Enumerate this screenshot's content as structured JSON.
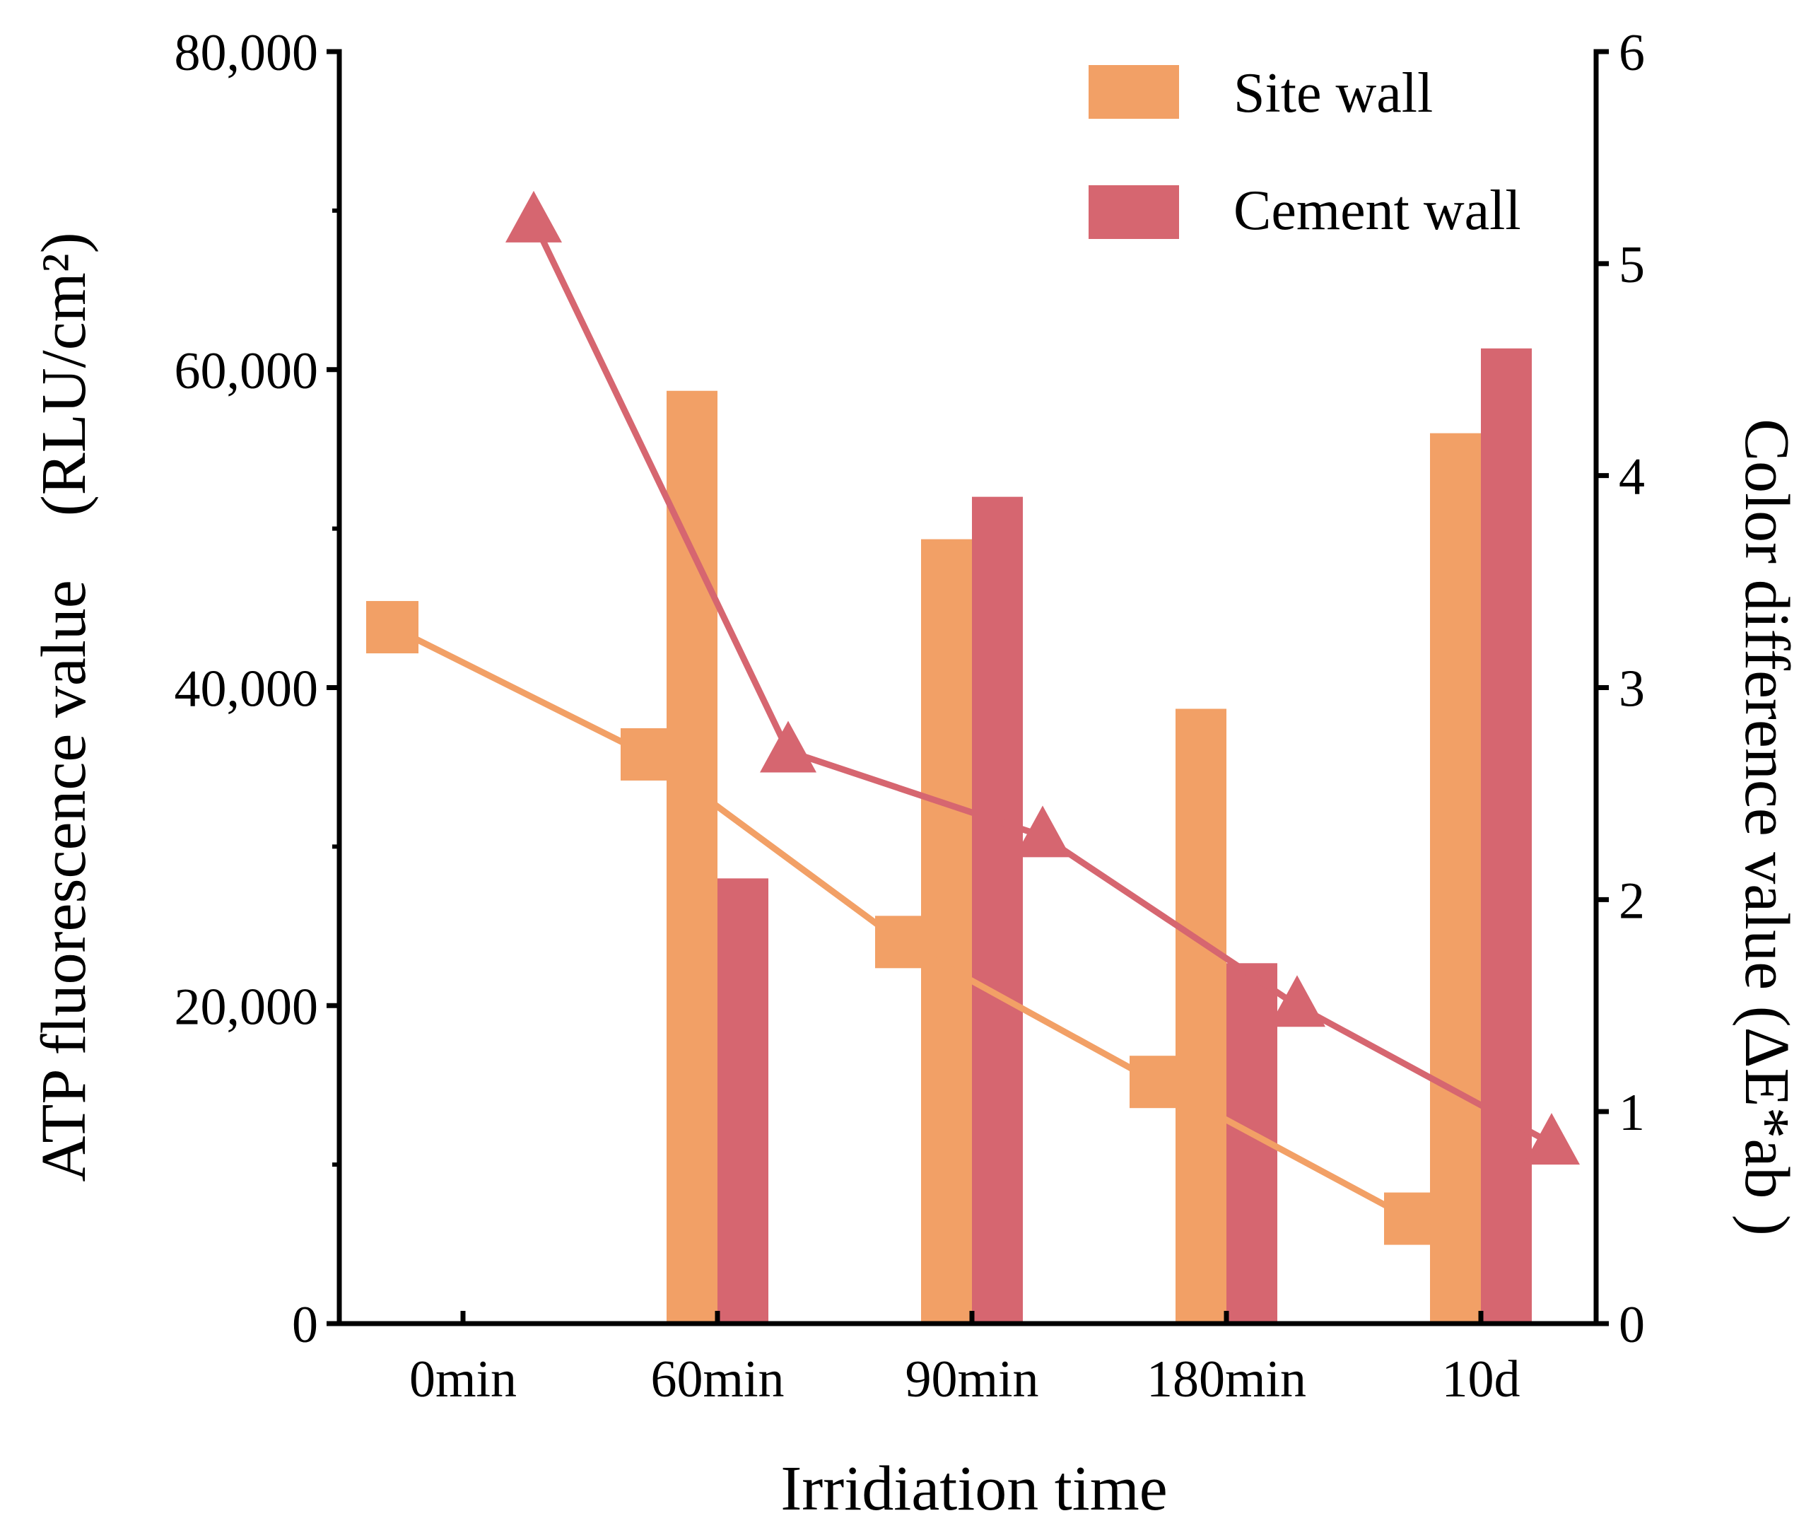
{
  "chart_data": {
    "type": "bar",
    "xlabel": "Irridiation time",
    "ylabel": "ATP fluorescence value　(RLU/cm²)",
    "ylabel_right": "Color  difference value (ΔE*ab )",
    "categories": [
      "0min",
      "60min",
      "90min",
      "180min",
      "10d"
    ],
    "ylim": [
      0,
      80000
    ],
    "ylim_right": [
      0,
      6
    ],
    "y_ticks": [
      "0",
      "20,000",
      "40,000",
      "60,000",
      "80,000"
    ],
    "y_right_ticks": [
      "0",
      "1",
      "2",
      "3",
      "4",
      "5",
      "6"
    ],
    "bar_series": [
      {
        "name": "Site wall",
        "axis": "left",
        "values": [
          0,
          4.4,
          3.7,
          2.9,
          4.2
        ],
        "color": "#F2A066"
      },
      {
        "name": "Cement wall",
        "axis": "left",
        "values": [
          0,
          2.1,
          3.9,
          1.7,
          4.6
        ],
        "color": "#D66670"
      }
    ],
    "line_series": [
      {
        "axis": "left",
        "marker": "square",
        "values": [
          43800,
          35800,
          24000,
          15200,
          6600
        ],
        "color": "#F2A066"
      },
      {
        "axis": "right",
        "marker": "triangle",
        "values": [
          5.2,
          2.7,
          2.3,
          1.5,
          0.85
        ],
        "color": "#D66670"
      }
    ],
    "legend": {
      "position": "top-right",
      "entries": [
        "Site wall",
        "Cement wall"
      ]
    },
    "grid": false
  }
}
